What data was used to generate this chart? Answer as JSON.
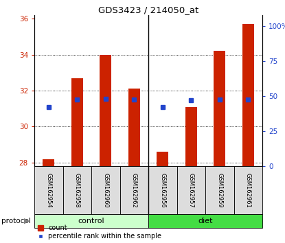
{
  "title": "GDS3423 / 214050_at",
  "samples": [
    "GSM162954",
    "GSM162958",
    "GSM162960",
    "GSM162962",
    "GSM162956",
    "GSM162957",
    "GSM162959",
    "GSM162961"
  ],
  "red_values": [
    28.2,
    32.7,
    34.0,
    32.1,
    28.6,
    31.1,
    34.2,
    35.7
  ],
  "blue_values": [
    31.1,
    31.5,
    31.55,
    31.5,
    31.1,
    31.45,
    31.5,
    31.5
  ],
  "ylim_left": [
    27.8,
    36.2
  ],
  "yticks_left": [
    28,
    30,
    32,
    34,
    36
  ],
  "ylim_right": [
    0,
    108
  ],
  "yticks_right": [
    0,
    25,
    50,
    75,
    100
  ],
  "yticklabels_right": [
    "0",
    "25",
    "50",
    "75",
    "100%"
  ],
  "bar_bottom": 27.8,
  "red_color": "#cc2200",
  "blue_color": "#2244cc",
  "group_labels": [
    "control",
    "diet"
  ],
  "ctrl_color": "#ccffcc",
  "diet_color": "#44dd44",
  "legend_items": [
    "count",
    "percentile rank within the sample"
  ],
  "bar_width": 0.4,
  "blue_marker_size": 4,
  "label_box_color": "#dddddd"
}
